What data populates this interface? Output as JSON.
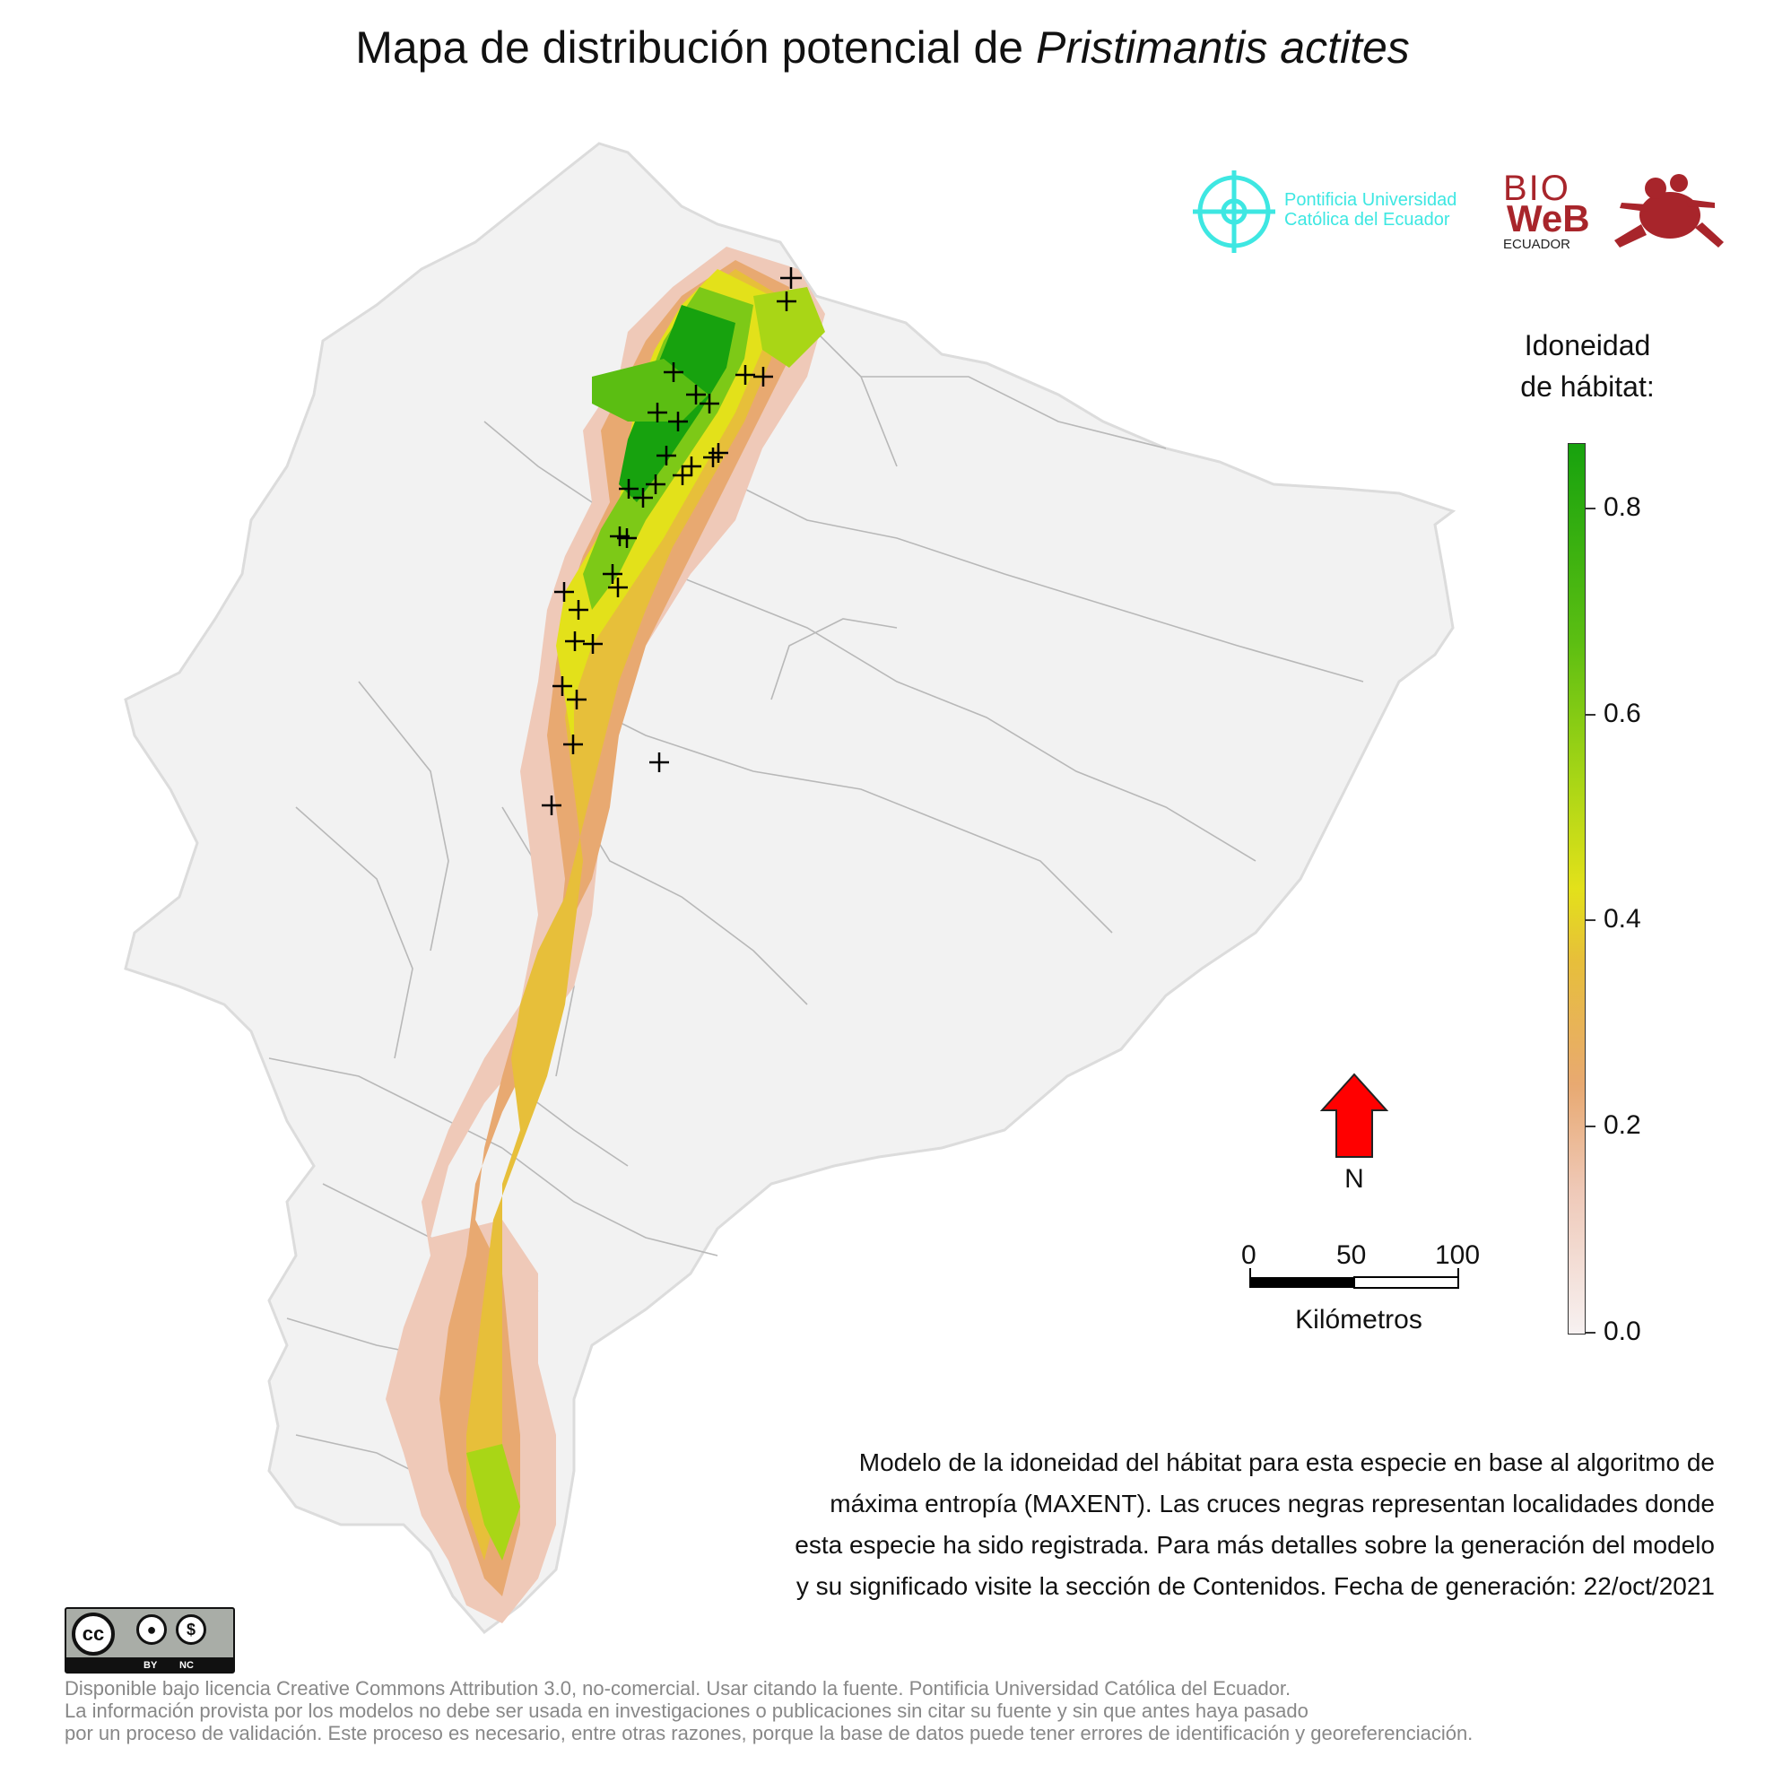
{
  "title": {
    "prefix": "Mapa de distribución potencial de ",
    "species": "Pristimantis actites"
  },
  "legend": {
    "title_line1": "Idoneidad",
    "title_line2": "de hábitat:",
    "ticks": [
      "0.0",
      "0.2",
      "0.4",
      "0.6",
      "0.8"
    ]
  },
  "north": {
    "label": "N",
    "arrow_color": "#ff0000"
  },
  "scale": {
    "labels": [
      "0",
      "50",
      "100"
    ],
    "unit": "Kilómetros"
  },
  "caption": [
    "Modelo de la idoneidad del hábitat para esta especie en base al algoritmo de",
    "máxima entropía (MAXENT). Las cruces negras representan localidades donde",
    "esta especie ha sido registrada. Para más detalles sobre la generación del modelo",
    "y su significado visite la sección de Contenidos. Fecha de generación: 22/oct/2021"
  ],
  "license": [
    "Disponible bajo licencia Creative Commons Attribution 3.0, no-comercial. Usar citando la fuente. Pontificia Universidad Católica del Ecuador.",
    "La información provista por los modelos no debe ser usada en investigaciones o publicaciones sin citar su fuente y sin que antes haya pasado",
    "por un proceso de validación. Este proceso es necesario, entre otras razones, porque la base de datos puede tener errores de identificación y georeferenciación."
  ],
  "cc_badge": {
    "cc": "cc",
    "by": "BY",
    "nc": "NC"
  },
  "logos": {
    "puce_line1": "Pontificia Universidad",
    "puce_line2": "Católica del Ecuador",
    "bioweb_bio": "BIO",
    "bioweb_web": "WeB",
    "bioweb_ecuador": "ECUADOR"
  },
  "colors": {
    "high": "#17a20e",
    "mid": "#e3e11a",
    "low": "#e8a971",
    "none": "#f2f2f2",
    "puce": "#3ee7e2",
    "bioweb": "#a8252b"
  }
}
